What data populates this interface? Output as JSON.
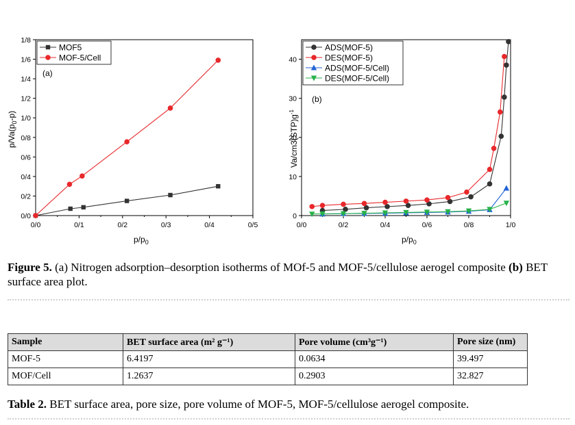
{
  "figure": {
    "caption_label": "Figure 5.",
    "caption_part1": "(a) Nitrogen adsorption–desorption isotherms of MOf-5 and MOF-5/cellulose aerogel composite",
    "caption_b": "(b)",
    "caption_part2": "BET surface area plot."
  },
  "chart_data": [
    {
      "type": "line",
      "panel_label": "(a)",
      "ylabel": "p/Va(p0-p)",
      "xlabel": "p/p0",
      "xlim": [
        0,
        0.5
      ],
      "ylim": [
        0,
        1.8
      ],
      "x_ticks": [
        "0/0",
        "0/1",
        "0/2",
        "0/3",
        "0/4",
        "0/5"
      ],
      "y_ticks": [
        "0/0",
        "0/2",
        "0/4",
        "0/6",
        "0/8",
        "1/0",
        "1/2",
        "1/4",
        "1/6",
        "1/8"
      ],
      "grid": false,
      "legend_position": "top-left",
      "series": [
        {
          "name": "MOF5",
          "color": "#333333",
          "marker": "square",
          "x": [
            0,
            0.08,
            0.11,
            0.21,
            0.31,
            0.42
          ],
          "y": [
            0,
            0.07,
            0.085,
            0.15,
            0.21,
            0.3
          ]
        },
        {
          "name": "MOF-5/Cell",
          "color": "#e8282b",
          "marker": "circle",
          "x": [
            0,
            0.078,
            0.107,
            0.21,
            0.31,
            0.42
          ],
          "y": [
            0,
            0.32,
            0.405,
            0.755,
            1.1,
            1.59
          ]
        }
      ]
    },
    {
      "type": "line",
      "panel_label": "(b)",
      "ylabel": "Va/cm3(STP)g-1",
      "xlabel": "p/p0",
      "xlim": [
        0,
        1.0
      ],
      "ylim": [
        0,
        45
      ],
      "x_ticks": [
        "0/0",
        "0/2",
        "0/4",
        "0/6",
        "0/8",
        "1/0"
      ],
      "y_ticks": [
        "0",
        "10",
        "20",
        "30",
        "40"
      ],
      "grid": false,
      "legend_position": "top-left",
      "series": [
        {
          "name": "ADS(MOF-5)",
          "color": "#333333",
          "marker": "circle",
          "x": [
            0.1,
            0.21,
            0.31,
            0.41,
            0.51,
            0.61,
            0.71,
            0.81,
            0.9,
            0.955,
            0.97,
            0.98,
            0.99
          ],
          "y": [
            1.3,
            1.6,
            2.0,
            2.3,
            2.6,
            3.0,
            3.6,
            4.8,
            8.1,
            20.3,
            30.3,
            38.5,
            44.5
          ]
        },
        {
          "name": "DES(MOF-5)",
          "color": "#e8282b",
          "marker": "circle",
          "x": [
            0.05,
            0.1,
            0.2,
            0.3,
            0.4,
            0.5,
            0.6,
            0.7,
            0.79,
            0.9,
            0.92,
            0.95,
            0.97
          ],
          "y": [
            2.3,
            2.6,
            2.9,
            3.1,
            3.4,
            3.7,
            4.0,
            4.6,
            6.0,
            11.8,
            17.2,
            26.5,
            40.7
          ]
        },
        {
          "name": "ADS(MOF-5/Cell)",
          "color": "#2162d6",
          "marker": "triangle-up",
          "x": [
            0.1,
            0.2,
            0.3,
            0.4,
            0.5,
            0.6,
            0.7,
            0.8,
            0.9,
            0.98
          ],
          "y": [
            0.4,
            0.5,
            0.55,
            0.6,
            0.7,
            0.8,
            0.9,
            1.1,
            1.5,
            7.0
          ]
        },
        {
          "name": "DES(MOF-5/Cell)",
          "color": "#27b24a",
          "marker": "triangle-down",
          "x": [
            0.05,
            0.1,
            0.2,
            0.3,
            0.4,
            0.5,
            0.6,
            0.7,
            0.8,
            0.9,
            0.98
          ],
          "y": [
            0.4,
            0.45,
            0.5,
            0.6,
            0.7,
            0.8,
            0.9,
            1.0,
            1.2,
            1.6,
            3.2
          ]
        }
      ]
    }
  ],
  "table": {
    "headers": [
      "Sample",
      "BET surface area (m² g⁻¹)",
      "Pore volume (cm³g⁻¹)",
      "Pore size (nm)"
    ],
    "rows": [
      [
        "MOF-5",
        "6.4197",
        "0.0634",
        "39.497"
      ],
      [
        "MOF/Cell",
        "1.2637",
        "0.2903",
        "32.827"
      ]
    ],
    "caption_label": "Table 2.",
    "caption_text": "BET surface area, pore size, pore volume of MOF-5, MOF-5/cellulose aerogel composite."
  }
}
